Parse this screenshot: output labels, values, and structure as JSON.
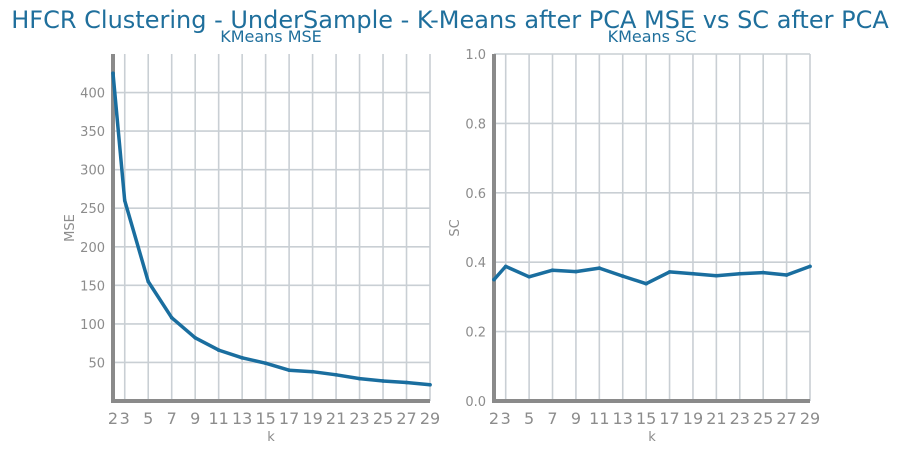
{
  "figure": {
    "title": "HFCR Clustering - UnderSample - K-Means after PCA MSE vs SC after PCA"
  },
  "chart_data": [
    {
      "type": "line",
      "title": "KMeans MSE",
      "xlabel": "k",
      "ylabel": "MSE",
      "x": [
        2,
        3,
        5,
        7,
        9,
        11,
        13,
        15,
        17,
        19,
        21,
        23,
        25,
        27,
        29
      ],
      "series": [
        {
          "values": [
            425,
            260,
            155,
            108,
            82,
            66,
            56,
            49,
            40,
            38,
            34,
            29,
            26,
            24,
            21
          ]
        }
      ],
      "xticks": [
        "2",
        "3",
        "5",
        "7",
        "9",
        "11",
        "13",
        "15",
        "17",
        "19",
        "21",
        "23",
        "25",
        "27",
        "29"
      ],
      "yticks": [
        "50",
        "100",
        "150",
        "200",
        "250",
        "300",
        "350",
        "400"
      ],
      "xlim": [
        2,
        29
      ],
      "ylim": [
        0,
        450
      ],
      "grid": true,
      "color": "#1a6e9f"
    },
    {
      "type": "line",
      "title": "KMeans SC",
      "xlabel": "k",
      "ylabel": "SC",
      "x": [
        2,
        3,
        5,
        7,
        9,
        11,
        13,
        15,
        17,
        19,
        21,
        23,
        25,
        27,
        29
      ],
      "series": [
        {
          "values": [
            0.35,
            0.388,
            0.358,
            0.377,
            0.373,
            0.383,
            0.36,
            0.338,
            0.372,
            0.367,
            0.361,
            0.367,
            0.37,
            0.363,
            0.388
          ]
        }
      ],
      "xticks": [
        "2",
        "3",
        "5",
        "7",
        "9",
        "11",
        "13",
        "15",
        "17",
        "19",
        "21",
        "23",
        "25",
        "27",
        "29"
      ],
      "yticks": [
        "0.0",
        "0.2",
        "0.4",
        "0.6",
        "0.8",
        "1.0"
      ],
      "xlim": [
        2,
        29
      ],
      "ylim": [
        0,
        1
      ],
      "grid": true,
      "color": "#1a6e9f"
    }
  ]
}
